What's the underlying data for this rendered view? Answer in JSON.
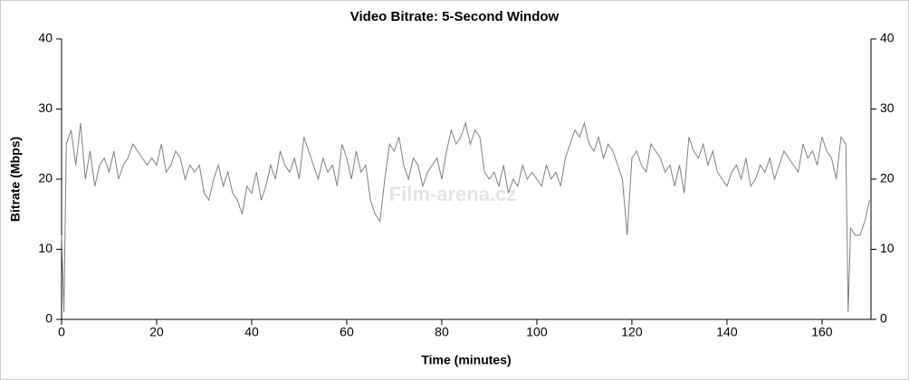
{
  "chart_data": {
    "type": "line",
    "title": "Video Bitrate: 5-Second Window",
    "x_label": "Time (minutes)",
    "y_label": "Bitrate (Mbps)",
    "watermark": "Film-arena.cz",
    "color": "#808080",
    "x": [
      0,
      0.5,
      1,
      2,
      3,
      4,
      5,
      6,
      7,
      8,
      9,
      10,
      11,
      12,
      13,
      14,
      15,
      16,
      17,
      18,
      19,
      20,
      21,
      22,
      23,
      24,
      25,
      26,
      27,
      28,
      29,
      30,
      31,
      32,
      33,
      34,
      35,
      36,
      37,
      38,
      39,
      40,
      41,
      42,
      43,
      44,
      45,
      46,
      47,
      48,
      49,
      50,
      51,
      52,
      53,
      54,
      55,
      56,
      57,
      58,
      59,
      60,
      61,
      62,
      63,
      64,
      65,
      66,
      67,
      68,
      69,
      70,
      71,
      72,
      73,
      74,
      75,
      76,
      77,
      78,
      79,
      80,
      81,
      82,
      83,
      84,
      85,
      86,
      87,
      88,
      89,
      90,
      91,
      92,
      93,
      94,
      95,
      96,
      97,
      98,
      99,
      100,
      101,
      102,
      103,
      104,
      105,
      106,
      107,
      108,
      109,
      110,
      111,
      112,
      113,
      114,
      115,
      116,
      117,
      118,
      119,
      120,
      121,
      122,
      123,
      124,
      125,
      126,
      127,
      128,
      129,
      130,
      131,
      132,
      133,
      134,
      135,
      136,
      137,
      138,
      139,
      140,
      141,
      142,
      143,
      144,
      145,
      146,
      147,
      148,
      149,
      150,
      151,
      152,
      153,
      154,
      155,
      156,
      157,
      158,
      159,
      160,
      161,
      162,
      163,
      164,
      165,
      165.5,
      166,
      167,
      168,
      169,
      170
    ],
    "values": [
      12,
      1,
      25,
      27,
      22,
      28,
      20,
      24,
      19,
      22,
      23,
      21,
      24,
      20,
      22,
      23,
      25,
      24,
      23,
      22,
      23,
      22,
      25,
      21,
      22,
      24,
      23,
      20,
      22,
      21,
      22,
      18,
      17,
      20,
      22,
      19,
      21,
      18,
      17,
      15,
      19,
      18,
      21,
      17,
      19,
      22,
      20,
      24,
      22,
      21,
      23,
      20,
      26,
      24,
      22,
      20,
      23,
      21,
      22,
      19,
      25,
      23,
      20,
      24,
      21,
      22,
      17,
      15,
      14,
      20,
      25,
      24,
      26,
      22,
      20,
      23,
      22,
      19,
      21,
      22,
      23,
      20,
      24,
      27,
      25,
      26,
      28,
      25,
      27,
      26,
      21,
      20,
      21,
      19,
      22,
      18,
      20,
      19,
      22,
      20,
      21,
      20,
      19,
      22,
      20,
      21,
      19,
      23,
      25,
      27,
      26,
      28,
      25,
      24,
      26,
      23,
      25,
      24,
      22,
      20,
      12,
      23,
      24,
      22,
      21,
      25,
      24,
      23,
      21,
      22,
      19,
      22,
      18,
      26,
      24,
      23,
      25,
      22,
      24,
      21,
      20,
      19,
      21,
      22,
      20,
      23,
      19,
      20,
      22,
      21,
      23,
      20,
      22,
      24,
      23,
      22,
      21,
      25,
      23,
      24,
      22,
      26,
      24,
      23,
      20,
      26,
      25,
      1,
      13,
      12,
      12,
      14,
      17
    ],
    "xlim": [
      0,
      170.3
    ],
    "xticks": [
      0,
      20,
      40,
      60,
      80,
      100,
      120,
      140,
      160
    ],
    "ylim": [
      0,
      40
    ],
    "yticks": [
      0,
      10,
      20,
      30,
      40
    ],
    "y2lim": [
      0,
      40
    ],
    "y2ticks": [
      0,
      10,
      20,
      30,
      40
    ]
  }
}
